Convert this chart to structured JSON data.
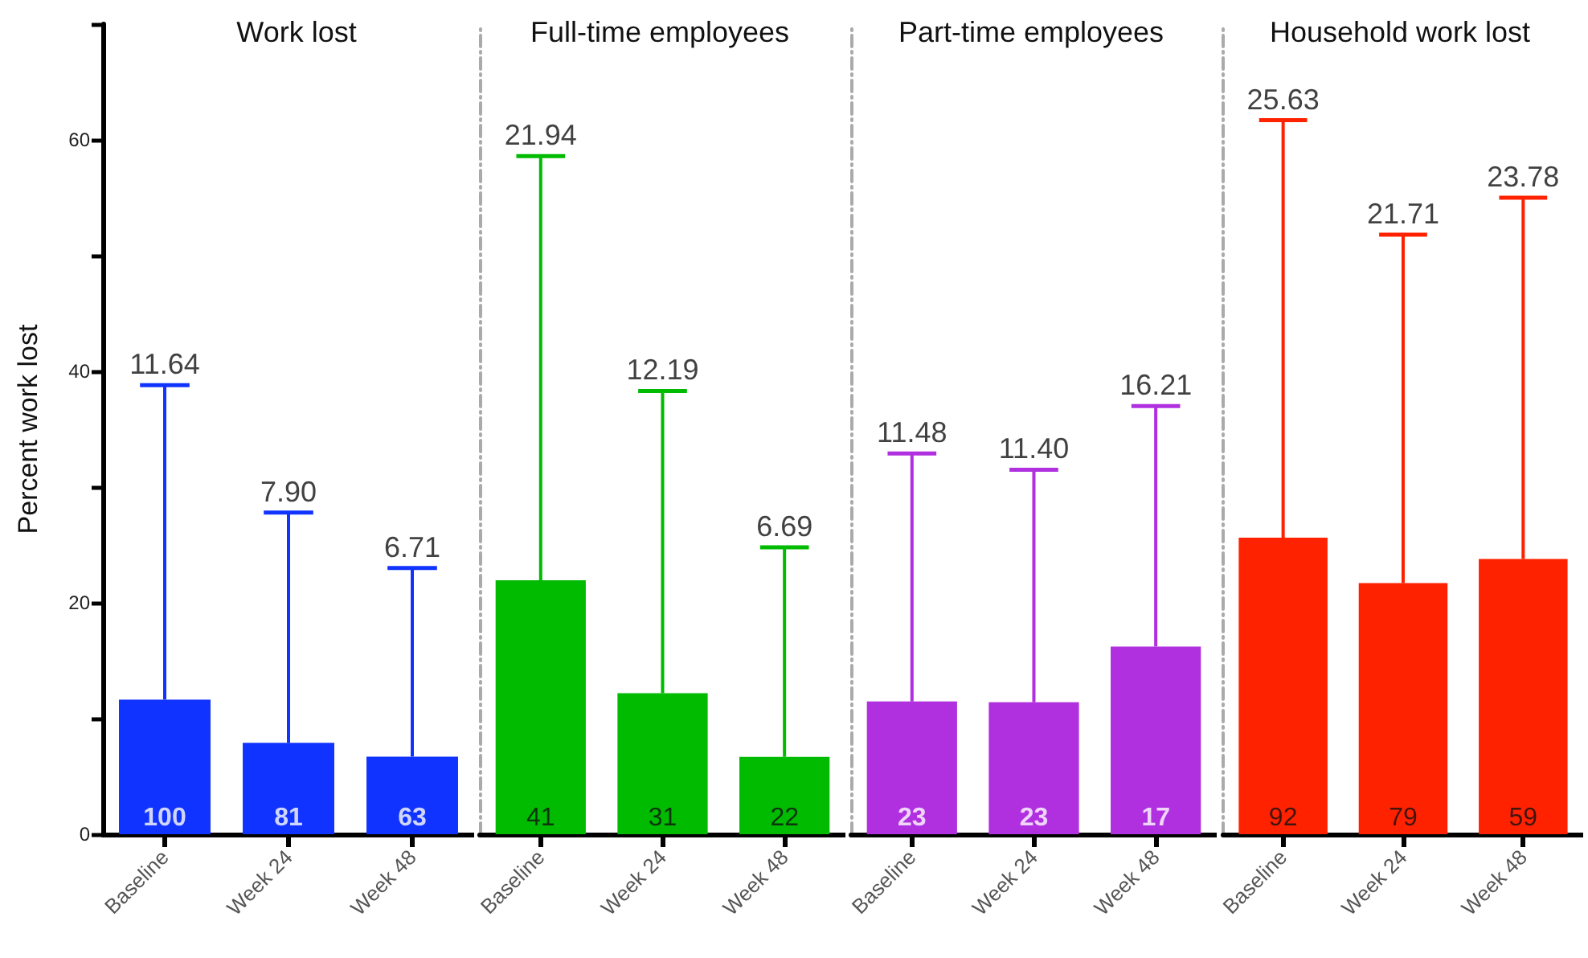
{
  "chart_data": [
    {
      "type": "bar",
      "title": "Work lost",
      "ylabel": "Percent work lost",
      "categories": [
        "Baseline",
        "Week 24",
        "Week 48"
      ],
      "values": [
        11.64,
        7.9,
        6.71
      ],
      "color": "#1133ff",
      "errors": [
        [
          11.64,
          38.8
        ],
        [
          7.9,
          27.8
        ],
        [
          6.71,
          23.0
        ]
      ],
      "annotations": [
        {
          "text": "100",
          "x": "Baseline",
          "y": 0
        },
        {
          "text": "81",
          "x": "Week 24",
          "y": 0
        },
        {
          "text": "63",
          "x": "Week 48",
          "y": 0
        },
        {
          "text": "11.64",
          "x": "Baseline",
          "y": 38.8
        },
        {
          "text": "7.90",
          "x": "Week 24",
          "y": 27.8
        },
        {
          "text": "6.71",
          "x": "Week 48",
          "y": 23.0
        }
      ],
      "ylim": [
        0,
        70
      ],
      "yticks": [
        0,
        {
          "value": 10,
          "label": null
        },
        20,
        {
          "value": 30,
          "label": null
        },
        40,
        {
          "value": 50,
          "label": null
        },
        60,
        {
          "value": 70,
          "label": null
        }
      ],
      "grid": false
    },
    {
      "type": "bar",
      "title": "Full-time employees",
      "categories": [
        "Baseline",
        "Week 24",
        "Week 48"
      ],
      "values": [
        21.94,
        12.19,
        6.69
      ],
      "color": "#00bb00",
      "errors": [
        [
          21.94,
          58.6
        ],
        [
          12.19,
          38.3
        ],
        [
          6.69,
          24.8
        ]
      ],
      "annotations": [
        {
          "text": "41",
          "x": "Baseline",
          "y": 0
        },
        {
          "text": "31",
          "x": "Week 24",
          "y": 0
        },
        {
          "text": "22",
          "x": "Week 48",
          "y": 0
        },
        {
          "text": "21.94",
          "x": "Baseline",
          "y": 58.6
        },
        {
          "text": "12.19",
          "x": "Week 24",
          "y": 38.3
        },
        {
          "text": "6.69",
          "x": "Week 48",
          "y": 24.8
        }
      ],
      "ylim": [
        0,
        70
      ],
      "tick_labels": "x",
      "grid": false
    },
    {
      "type": "bar",
      "title": "Part-time employees",
      "categories": [
        "Baseline",
        "Week 24",
        "Week 48"
      ],
      "values": [
        11.48,
        11.4,
        16.21
      ],
      "color": "#b030e0",
      "errors": [
        [
          11.48,
          32.9
        ],
        [
          11.4,
          31.5
        ],
        [
          16.21,
          37.0
        ]
      ],
      "annotations": [
        {
          "text": "23",
          "x": "Baseline",
          "y": 0
        },
        {
          "text": "23",
          "x": "Week 24",
          "y": 0
        },
        {
          "text": "17",
          "x": "Week 48",
          "y": 0
        },
        {
          "text": "11.48",
          "x": "Baseline",
          "y": 32.9
        },
        {
          "text": "11.40",
          "x": "Week 24",
          "y": 31.5
        },
        {
          "text": "16.21",
          "x": "Week 48",
          "y": 37.0
        }
      ],
      "ylim": [
        0,
        70
      ],
      "tick_labels": "x",
      "grid": false
    },
    {
      "type": "bar",
      "title": "Household work lost",
      "categories": [
        "Baseline",
        "Week 24",
        "Week 48"
      ],
      "values": [
        25.63,
        21.71,
        23.78
      ],
      "color": "#ff2200",
      "errors": [
        [
          25.63,
          61.7
        ],
        [
          21.71,
          51.8
        ],
        [
          23.78,
          55.0
        ]
      ],
      "annotations": [
        {
          "text": "92",
          "x": "Baseline",
          "y": 0
        },
        {
          "text": "79",
          "x": "Week 24",
          "y": 0
        },
        {
          "text": "59",
          "x": "Week 48",
          "y": 0
        },
        {
          "text": "25.63",
          "x": "Baseline",
          "y": 61.7
        },
        {
          "text": "21.71",
          "x": "Week 24",
          "y": 51.8
        },
        {
          "text": "23.78",
          "x": "Week 48",
          "y": 55.0
        }
      ],
      "ylim": [
        0,
        70
      ],
      "tick_labels": "x",
      "grid": false
    }
  ]
}
